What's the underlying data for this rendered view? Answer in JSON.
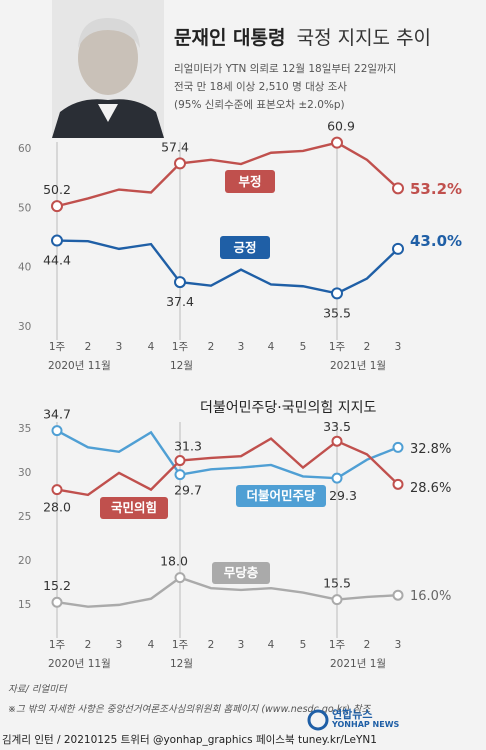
{
  "header": {
    "title_bold": "문재인 대통령",
    "title_light": "국정 지지도 추이",
    "info_lines": [
      "리얼미터가 YTN 의뢰로 12월 18일부터 22일까지",
      "전국 만 18세 이상 2,510 명 대상 조사",
      "(95% 신뢰수준에 표본오차 ±2.0%p)"
    ]
  },
  "colors": {
    "negative": "#c0504d",
    "positive": "#1f5fa6",
    "ppp": "#c0504d",
    "dp": "#4f9fd4",
    "none": "#aaaaaa"
  },
  "x_ticks": [
    "1주",
    "2",
    "3",
    "4",
    "1주",
    "2",
    "3",
    "4",
    "5",
    "1주",
    "2",
    "3"
  ],
  "month_labels": {
    "nov": "2020년 11월",
    "dec": "12월",
    "jan": "2021년 1월"
  },
  "chart_data": [
    {
      "type": "line",
      "title": "",
      "ylim": [
        30,
        60
      ],
      "yticks": [
        30,
        40,
        50,
        60
      ],
      "grid": false,
      "series": [
        {
          "name": "부정",
          "values": [
            50.2,
            51.5,
            53.0,
            52.5,
            57.4,
            58.0,
            57.3,
            59.2,
            59.5,
            60.9,
            58.0,
            53.2
          ],
          "labels": {
            "0": "50.2",
            "4": "57.4",
            "9": "60.9"
          },
          "end_label": "53.2%"
        },
        {
          "name": "긍정",
          "values": [
            44.4,
            44.3,
            43.0,
            43.8,
            37.4,
            36.8,
            39.5,
            37.0,
            36.7,
            35.5,
            38.0,
            43.0
          ],
          "labels": {
            "0": "44.4",
            "4": "37.4",
            "9": "35.5"
          },
          "end_label": "43.0%"
        }
      ]
    },
    {
      "type": "line",
      "title": "더불어민주당·국민의힘 지지도",
      "ylim": [
        15,
        35
      ],
      "yticks": [
        15,
        20,
        25,
        30,
        35
      ],
      "grid": false,
      "series": [
        {
          "name": "더불어민주당",
          "values": [
            34.7,
            32.8,
            32.3,
            34.5,
            29.7,
            30.3,
            30.5,
            30.8,
            29.5,
            29.3,
            31.4,
            32.8
          ],
          "labels": {
            "0": "34.7",
            "4": "29.7",
            "9": "29.3"
          },
          "end_label": "32.8%"
        },
        {
          "name": "국민의힘",
          "values": [
            28.0,
            27.4,
            29.9,
            28.0,
            31.3,
            31.6,
            31.8,
            33.8,
            30.5,
            33.5,
            32.0,
            28.6
          ],
          "labels": {
            "0": "28.0",
            "4": "31.3",
            "9": "33.5"
          },
          "end_label": "28.6%"
        },
        {
          "name": "무당층",
          "values": [
            15.2,
            14.7,
            14.9,
            15.6,
            18.0,
            16.8,
            16.6,
            16.8,
            16.3,
            15.5,
            15.8,
            16.0
          ],
          "labels": {
            "0": "15.2",
            "4": "18.0",
            "9": "15.5"
          },
          "end_label": "16.0%"
        }
      ]
    }
  ],
  "footer": {
    "source": "자료/ 리얼미터",
    "note": "※그 밖의 자세한 사항은 중앙선거여론조사심의위원회 홈페이지 (www.nesdc.go.kr) 참조",
    "credit": "김계리 인턴 / 20210125  트위터 @yonhap_graphics  페이스북 tuney.kr/LeYN1",
    "brand": "연합뉴스",
    "brand_en": "YONHAP NEWS"
  }
}
